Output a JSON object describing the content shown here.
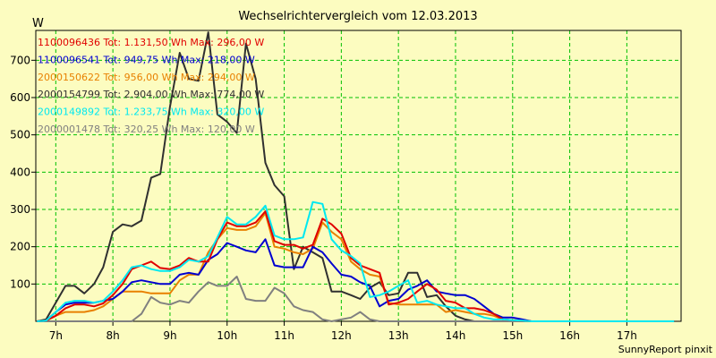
{
  "chart_data": {
    "type": "line",
    "title": "Wechselrichtervergleich vom 12.03.2013",
    "ylabel": "W",
    "xlabel": "",
    "ylim": [
      0,
      780
    ],
    "xlim": [
      6.65,
      17.95
    ],
    "yticks": [
      100,
      200,
      300,
      400,
      500,
      600,
      700
    ],
    "xticks": [
      7,
      8,
      9,
      10,
      11,
      12,
      13,
      14,
      15,
      16,
      17
    ],
    "xtick_labels": [
      "7h",
      "8h",
      "9h",
      "10h",
      "11h",
      "12h",
      "13h",
      "14h",
      "15h",
      "16h",
      "17h"
    ],
    "grid": true,
    "legend_position": "top-left",
    "footer": "SunnyReport pinxit",
    "x": [
      6.67,
      6.83,
      7.0,
      7.17,
      7.33,
      7.5,
      7.67,
      7.83,
      8.0,
      8.17,
      8.33,
      8.5,
      8.67,
      8.83,
      9.0,
      9.17,
      9.33,
      9.5,
      9.67,
      9.83,
      10.0,
      10.17,
      10.33,
      10.5,
      10.67,
      10.83,
      11.0,
      11.17,
      11.33,
      11.5,
      11.67,
      11.83,
      12.0,
      12.17,
      12.33,
      12.5,
      12.67,
      12.83,
      13.0,
      13.17,
      13.33,
      13.5,
      13.67,
      13.83,
      14.0,
      14.17,
      14.33,
      14.5,
      14.67,
      14.83,
      15.0,
      15.17,
      15.33,
      15.5,
      15.67,
      15.83,
      16.0,
      16.17,
      16.33,
      16.5,
      16.67,
      16.83,
      17.0,
      17.17,
      17.33,
      17.5,
      17.67,
      17.83
    ],
    "series": [
      {
        "name": "1100096436",
        "legend": "1100096436 Tot: 1.131,50 Wh Max: 296,00 W",
        "color": "#e00000",
        "values": [
          0,
          2,
          15,
          35,
          45,
          45,
          40,
          48,
          70,
          100,
          140,
          150,
          160,
          143,
          140,
          150,
          170,
          160,
          160,
          220,
          265,
          255,
          255,
          265,
          295,
          215,
          205,
          205,
          195,
          205,
          275,
          260,
          235,
          170,
          150,
          140,
          130,
          45,
          50,
          60,
          80,
          100,
          85,
          55,
          50,
          35,
          35,
          30,
          20,
          5,
          3,
          2,
          0,
          0,
          0,
          0,
          0,
          0,
          0,
          0,
          0,
          0,
          0,
          0,
          0,
          0,
          0,
          0
        ]
      },
      {
        "name": "1100096541",
        "legend": "1100096541 Tot: 949,75 Wh Max: 218,00 W",
        "color": "#0000d0",
        "values": [
          0,
          2,
          25,
          45,
          50,
          50,
          50,
          55,
          60,
          80,
          105,
          110,
          105,
          100,
          100,
          125,
          130,
          125,
          165,
          180,
          210,
          200,
          190,
          185,
          220,
          150,
          145,
          145,
          145,
          200,
          185,
          155,
          125,
          120,
          105,
          95,
          40,
          55,
          60,
          85,
          95,
          110,
          80,
          75,
          70,
          70,
          60,
          40,
          20,
          10,
          10,
          5,
          0,
          0,
          0,
          0,
          0,
          0,
          0,
          0,
          0,
          0,
          0,
          0,
          0,
          0,
          0,
          0
        ]
      },
      {
        "name": "2000150622",
        "legend": "2000150622 Tot: 956,00 Wh Max: 294,00 W",
        "color": "#e88000",
        "values": [
          0,
          2,
          15,
          25,
          25,
          25,
          30,
          40,
          60,
          80,
          80,
          80,
          75,
          75,
          75,
          110,
          125,
          125,
          185,
          220,
          250,
          245,
          245,
          255,
          290,
          200,
          195,
          185,
          180,
          195,
          265,
          240,
          220,
          160,
          140,
          125,
          120,
          50,
          45,
          45,
          45,
          45,
          45,
          25,
          30,
          25,
          20,
          20,
          15,
          5,
          3,
          2,
          0,
          0,
          0,
          0,
          0,
          0,
          0,
          0,
          0,
          0,
          0,
          0,
          0,
          0,
          0,
          0
        ]
      },
      {
        "name": "2000154799",
        "legend": "2000154799 Tot: 2.904,00 Wh Max: 774,00 W",
        "color": "#303030",
        "values": [
          0,
          5,
          50,
          95,
          95,
          75,
          100,
          145,
          240,
          260,
          255,
          270,
          385,
          395,
          575,
          720,
          650,
          645,
          775,
          555,
          535,
          505,
          745,
          650,
          425,
          365,
          335,
          140,
          200,
          185,
          170,
          80,
          80,
          70,
          60,
          90,
          105,
          70,
          75,
          130,
          130,
          65,
          70,
          40,
          15,
          5,
          0,
          0,
          0,
          0,
          0,
          0,
          0,
          0,
          0,
          0,
          0,
          0,
          0,
          0,
          0,
          0,
          0,
          0,
          0,
          0,
          0,
          0
        ]
      },
      {
        "name": "2000149892",
        "legend": "2000149892 Tot: 1.233,75 Wh Max: 320,00 W",
        "color": "#00e8f0",
        "values": [
          0,
          2,
          25,
          50,
          55,
          55,
          50,
          55,
          80,
          110,
          145,
          150,
          140,
          135,
          135,
          145,
          165,
          160,
          175,
          225,
          280,
          260,
          260,
          280,
          310,
          230,
          220,
          220,
          225,
          320,
          315,
          220,
          190,
          175,
          155,
          65,
          70,
          80,
          95,
          110,
          50,
          55,
          45,
          40,
          35,
          35,
          20,
          10,
          5,
          5,
          3,
          2,
          0,
          0,
          0,
          0,
          0,
          0,
          0,
          0,
          0,
          0,
          0,
          0,
          0,
          0,
          0,
          0
        ]
      },
      {
        "name": "2000001478",
        "legend": "2000001478 Tot: 320,25 Wh Max: 120,00 W",
        "color": "#808080",
        "values": [
          0,
          0,
          0,
          0,
          0,
          0,
          0,
          0,
          0,
          0,
          0,
          20,
          65,
          50,
          45,
          55,
          50,
          80,
          105,
          95,
          95,
          120,
          60,
          55,
          55,
          90,
          75,
          40,
          30,
          25,
          5,
          0,
          5,
          10,
          25,
          5,
          0,
          0,
          0,
          0,
          0,
          0,
          0,
          0,
          0,
          0,
          0,
          0,
          0,
          0,
          0,
          0,
          0,
          0,
          0,
          0,
          0,
          0,
          0,
          0,
          0,
          0,
          0,
          0,
          0,
          0,
          0,
          0
        ]
      }
    ]
  }
}
